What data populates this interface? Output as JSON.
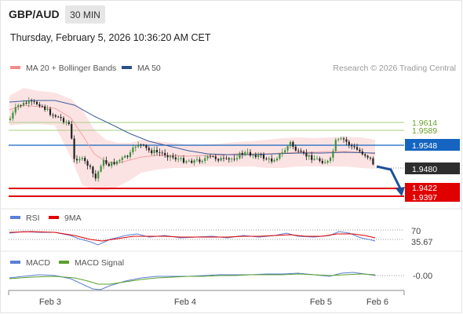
{
  "header": {
    "symbol": "GBP/AUD",
    "timeframe": "30 MIN",
    "datetime": "Thursday, February 5, 2026 10:36:20 AM CET"
  },
  "legend": {
    "bollinger": "MA 20 + Bollinger Bands",
    "ma50": "MA 50",
    "credit": "Research © 2026 Trading Central",
    "bollinger_color": "#f28b8b",
    "ma50_color": "#2a4f8f"
  },
  "levels": {
    "res2": "1.9614",
    "res1": "1.9589",
    "pivot": "1.9548",
    "last": "1.9480",
    "sup1": "1.9422",
    "sup2": "1.9397",
    "green_color": "#7fb03f",
    "blue_color": "#1565c0",
    "red_color": "#e00000",
    "last_bg": "#2d2d2d"
  },
  "rsi": {
    "label": "RSI",
    "ma_label": "9MA",
    "level_70": "70",
    "value": "35.67",
    "rsi_color": "#5b7fd6",
    "ma_color": "#e00000"
  },
  "macd": {
    "label": "MACD",
    "signal_label": "MACD Signal",
    "value": "-0.00",
    "macd_color": "#5b7fd6",
    "signal_color": "#5aa02c"
  },
  "xaxis": [
    "Feb 3",
    "Feb 4",
    "Feb 5",
    "Feb 6"
  ],
  "chart_data": {
    "type": "candlestick",
    "series": [
      {
        "name": "MA 20 + Bollinger Bands"
      },
      {
        "name": "MA 50"
      }
    ],
    "ohlc_close": [
      1.959,
      1.961,
      1.9605,
      1.96,
      1.9598,
      1.956,
      1.944,
      1.947,
      1.943,
      1.948,
      1.951,
      1.95,
      1.951,
      1.9505,
      1.95,
      1.9505,
      1.953,
      1.952,
      1.954,
      1.956,
      1.952,
      1.9505,
      1.948
    ],
    "last_price": 1.948,
    "ylim": [
      1.937,
      1.9665
    ]
  }
}
